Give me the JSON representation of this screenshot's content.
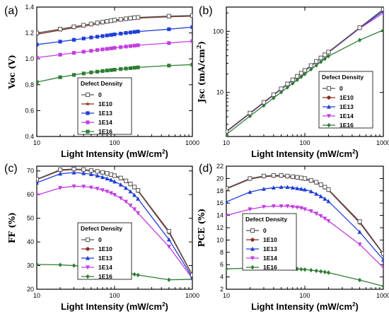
{
  "chart_data": [
    {
      "type": "line",
      "panel": "(a)",
      "xlabel": "Light Intensity (mW/cm2)",
      "ylabel": "Voc (V)",
      "xscale": "log",
      "yscale": "linear",
      "xlim": [
        10,
        1000
      ],
      "ylim": [
        0.4,
        1.4
      ],
      "xticks": [
        10,
        100,
        1000
      ],
      "xtick_labels": [
        "10",
        "100",
        "1000"
      ],
      "yticks": [
        0.4,
        0.6,
        0.8,
        1.0,
        1.2,
        1.4
      ],
      "ytick_labels": [
        "0.4",
        "0.6",
        "0.8",
        "1.0",
        "1.2",
        "1.4"
      ],
      "legend_title": "Defect Density",
      "legend_position": "lower-left",
      "x": [
        10,
        20,
        30,
        40,
        50,
        60,
        70,
        80,
        90,
        100,
        120,
        140,
        160,
        180,
        200,
        500,
        1000
      ],
      "series": [
        {
          "name": "0",
          "color": "#555555",
          "marker": "open-square",
          "values": [
            1.2,
            1.23,
            1.248,
            1.26,
            1.27,
            1.278,
            1.284,
            1.29,
            1.295,
            1.3,
            1.305,
            1.31,
            1.314,
            1.318,
            1.32,
            1.33,
            1.335
          ]
        },
        {
          "name": "1E10",
          "color": "#8b2e22",
          "marker": "star",
          "values": [
            1.19,
            1.222,
            1.24,
            1.252,
            1.262,
            1.27,
            1.277,
            1.283,
            1.288,
            1.292,
            1.298,
            1.304,
            1.308,
            1.312,
            1.315,
            1.325,
            1.33
          ]
        },
        {
          "name": "1E13",
          "color": "#1f3fd8",
          "marker": "square",
          "values": [
            1.11,
            1.133,
            1.147,
            1.157,
            1.165,
            1.171,
            1.176,
            1.181,
            1.185,
            1.189,
            1.195,
            1.2,
            1.204,
            1.208,
            1.211,
            1.229,
            1.245
          ]
        },
        {
          "name": "1E14",
          "color": "#c23ee0",
          "marker": "square",
          "values": [
            1.01,
            1.032,
            1.046,
            1.055,
            1.062,
            1.068,
            1.073,
            1.077,
            1.081,
            1.085,
            1.09,
            1.095,
            1.099,
            1.102,
            1.105,
            1.122,
            1.137
          ]
        },
        {
          "name": "1E16",
          "color": "#2e7d32",
          "marker": "square",
          "values": [
            0.82,
            0.858,
            0.876,
            0.887,
            0.895,
            0.901,
            0.906,
            0.91,
            0.913,
            0.916,
            0.921,
            0.925,
            0.928,
            0.931,
            0.934,
            0.948,
            0.955
          ]
        }
      ]
    },
    {
      "type": "line",
      "panel": "(b)",
      "xlabel": "Light Intensity (mW/cm2)",
      "ylabel": "Jsc (mA/cm2)",
      "xscale": "log",
      "yscale": "log",
      "xlim": [
        10,
        1000
      ],
      "ylim": [
        1.9,
        250
      ],
      "xticks": [
        10,
        100,
        1000
      ],
      "xtick_labels": [
        "10",
        "100",
        "1000"
      ],
      "yticks": [
        10,
        100
      ],
      "ytick_labels": [
        "10",
        "100"
      ],
      "legend_title": "Defect Density",
      "legend_position": "lower-right",
      "x": [
        10,
        20,
        30,
        40,
        50,
        60,
        70,
        80,
        90,
        100,
        120,
        140,
        160,
        180,
        200,
        500,
        1000
      ],
      "series": [
        {
          "name": "0",
          "color": "#555555",
          "marker": "open-square",
          "values": [
            2.3,
            4.6,
            6.9,
            9.2,
            11.5,
            13.8,
            16.1,
            18.4,
            20.7,
            23.0,
            27.6,
            32.2,
            36.8,
            41.4,
            46.0,
            115,
            230
          ]
        },
        {
          "name": "1E10",
          "color": "#8b2e22",
          "marker": "circle",
          "values": [
            2.3,
            4.6,
            6.9,
            9.2,
            11.5,
            13.8,
            16.1,
            18.4,
            20.7,
            23.0,
            27.6,
            32.2,
            36.8,
            41.4,
            46.0,
            115,
            228
          ]
        },
        {
          "name": "1E13",
          "color": "#1f3fd8",
          "marker": "triangle-up",
          "values": [
            2.28,
            4.56,
            6.84,
            9.12,
            11.4,
            13.7,
            16.0,
            18.2,
            20.5,
            22.8,
            27.4,
            31.9,
            36.5,
            41.0,
            45.6,
            114,
            215
          ]
        },
        {
          "name": "1E14",
          "color": "#c23ee0",
          "marker": "triangle-down",
          "values": [
            2.25,
            4.5,
            6.75,
            9.0,
            11.25,
            13.5,
            15.75,
            18.0,
            20.25,
            22.5,
            27.0,
            31.5,
            36.0,
            40.5,
            45.0,
            112,
            200
          ]
        },
        {
          "name": "1E16",
          "color": "#2e7d32",
          "marker": "diamond",
          "values": [
            2.05,
            4.1,
            6.1,
            8.1,
            10.1,
            12.1,
            14.1,
            16.1,
            18.0,
            20.0,
            23.9,
            27.8,
            31.7,
            35.5,
            39.3,
            72,
            105
          ]
        }
      ]
    },
    {
      "type": "line",
      "panel": "(c)",
      "xlabel": "Light Intensity (mW/cm2)",
      "ylabel": "FF (%)",
      "xscale": "log",
      "yscale": "linear",
      "xlim": [
        10,
        1000
      ],
      "ylim": [
        20,
        72
      ],
      "xticks": [
        10,
        100,
        1000
      ],
      "xtick_labels": [
        "10",
        "100",
        "1000"
      ],
      "yticks": [
        20,
        30,
        40,
        50,
        60,
        70
      ],
      "ytick_labels": [
        "20",
        "30",
        "40",
        "50",
        "60",
        "70"
      ],
      "legend_title": "Defect Density",
      "legend_position": "center-left",
      "x": [
        10,
        20,
        30,
        40,
        50,
        60,
        70,
        80,
        90,
        100,
        120,
        140,
        160,
        180,
        200,
        500,
        1000
      ],
      "series": [
        {
          "name": "0",
          "color": "#555555",
          "marker": "open-square",
          "values": [
            66.5,
            70.5,
            70.8,
            70.6,
            70.2,
            69.8,
            69.4,
            69.0,
            68.5,
            68.0,
            67.0,
            65.8,
            64.5,
            63.2,
            61.8,
            44.5,
            26.0
          ]
        },
        {
          "name": "1E10",
          "color": "#8b2e22",
          "marker": "circle",
          "values": [
            66.3,
            70.2,
            70.6,
            70.4,
            70.0,
            69.6,
            69.2,
            68.8,
            68.3,
            67.8,
            66.8,
            65.6,
            64.3,
            63.0,
            61.5,
            44.0,
            25.8
          ]
        },
        {
          "name": "1E13",
          "color": "#1f3fd8",
          "marker": "triangle-up",
          "values": [
            65.0,
            68.8,
            69.3,
            69.0,
            68.6,
            68.0,
            67.4,
            66.8,
            66.2,
            65.5,
            64.2,
            62.8,
            61.3,
            59.8,
            58.2,
            41.0,
            25.0
          ]
        },
        {
          "name": "1E14",
          "color": "#c23ee0",
          "marker": "triangle-down",
          "values": [
            59.8,
            62.8,
            63.5,
            63.4,
            63.0,
            62.5,
            61.9,
            61.3,
            60.6,
            59.9,
            58.5,
            57.0,
            55.4,
            53.8,
            52.2,
            38.0,
            24.5
          ]
        },
        {
          "name": "1E16",
          "color": "#2e7d32",
          "marker": "diamond",
          "values": [
            30.5,
            30.3,
            30.0,
            29.7,
            29.4,
            29.1,
            28.8,
            28.5,
            28.2,
            28.0,
            27.5,
            27.1,
            26.7,
            26.3,
            26.0,
            24.0,
            24.2
          ]
        }
      ]
    },
    {
      "type": "line",
      "panel": "(d)",
      "xlabel": "Light Intensity (mW/cm2)",
      "ylabel": "PCE (%)",
      "xscale": "log",
      "yscale": "linear",
      "xlim": [
        10,
        1000
      ],
      "ylim": [
        2,
        22
      ],
      "xticks": [
        10,
        100,
        1000
      ],
      "xtick_labels": [
        "10",
        "100",
        "1000"
      ],
      "yticks": [
        2,
        4,
        6,
        8,
        10,
        12,
        14,
        16,
        18,
        20,
        22
      ],
      "ytick_labels": [
        "2",
        "4",
        "6",
        "8",
        "10",
        "12",
        "14",
        "16",
        "18",
        "20",
        "22"
      ],
      "legend_title": "Defect Density",
      "legend_position": "center-left",
      "x": [
        10,
        20,
        30,
        40,
        50,
        60,
        70,
        80,
        90,
        100,
        120,
        140,
        160,
        180,
        200,
        500,
        1000
      ],
      "series": [
        {
          "name": "0",
          "color": "#555555",
          "marker": "open-square",
          "values": [
            18.4,
            20.0,
            20.4,
            20.5,
            20.5,
            20.4,
            20.3,
            20.2,
            20.1,
            20.0,
            19.7,
            19.4,
            19.0,
            18.6,
            18.2,
            13.0,
            7.8
          ]
        },
        {
          "name": "1E10",
          "color": "#8b2e22",
          "marker": "circle",
          "values": [
            18.3,
            19.9,
            20.3,
            20.4,
            20.4,
            20.3,
            20.2,
            20.1,
            20.0,
            19.9,
            19.6,
            19.3,
            18.9,
            18.5,
            18.1,
            12.8,
            7.7
          ]
        },
        {
          "name": "1E13",
          "color": "#1f3fd8",
          "marker": "triangle-up",
          "values": [
            16.2,
            17.8,
            18.3,
            18.5,
            18.6,
            18.6,
            18.5,
            18.4,
            18.3,
            18.2,
            17.9,
            17.5,
            17.1,
            16.7,
            16.3,
            11.3,
            6.8
          ]
        },
        {
          "name": "1E14",
          "color": "#c23ee0",
          "marker": "triangle-down",
          "values": [
            14.0,
            15.0,
            15.4,
            15.5,
            15.5,
            15.5,
            15.4,
            15.3,
            15.2,
            15.0,
            14.7,
            14.3,
            13.9,
            13.5,
            13.1,
            9.3,
            5.5
          ]
        },
        {
          "name": "1E16",
          "color": "#2e7d32",
          "marker": "diamond",
          "values": [
            5.3,
            5.45,
            5.5,
            5.5,
            5.45,
            5.4,
            5.35,
            5.3,
            5.25,
            5.2,
            5.1,
            5.0,
            4.9,
            4.8,
            4.7,
            3.5,
            2.5
          ]
        }
      ]
    }
  ]
}
